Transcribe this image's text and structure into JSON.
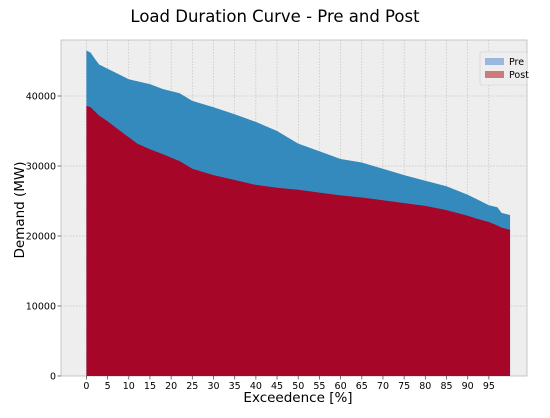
{
  "chart_data": {
    "type": "area",
    "title": "Load Duration Curve - Pre and Post",
    "xlabel": "Exceedence [%]",
    "ylabel": "Demand (MW)",
    "xlim": [
      -6,
      104
    ],
    "ylim": [
      0,
      48000
    ],
    "x_ticks": [
      "0",
      "5",
      "10",
      "15",
      "20",
      "25",
      "30",
      "35",
      "40",
      "45",
      "50",
      "55",
      "60",
      "65",
      "70",
      "75",
      "80",
      "85",
      "90",
      "95"
    ],
    "y_ticks": [
      "0",
      "10000",
      "20000",
      "30000",
      "40000"
    ],
    "grid": true,
    "legend_position": "top-right",
    "x": [
      0,
      1,
      2,
      3,
      5,
      8,
      10,
      12,
      15,
      18,
      20,
      22,
      25,
      30,
      35,
      40,
      45,
      50,
      55,
      60,
      65,
      70,
      75,
      80,
      85,
      90,
      92,
      95,
      97,
      98,
      100
    ],
    "series": [
      {
        "name": "Pre",
        "color": "#348abd",
        "legend_color": "#9ab8de",
        "values": [
          46500,
          46200,
          45300,
          44500,
          43900,
          43000,
          42400,
          42100,
          41700,
          41000,
          40700,
          40400,
          39300,
          38400,
          37400,
          36300,
          35000,
          33200,
          32100,
          31000,
          30500,
          29600,
          28700,
          27900,
          27100,
          25900,
          25300,
          24400,
          24100,
          23300,
          23000
        ]
      },
      {
        "name": "Post",
        "color": "#a60628",
        "legend_color": "#cc7a7c",
        "values": [
          38600,
          38400,
          37800,
          37200,
          36400,
          35000,
          34100,
          33200,
          32400,
          31700,
          31200,
          30700,
          29600,
          28700,
          28000,
          27300,
          26900,
          26600,
          26200,
          25800,
          25500,
          25100,
          24700,
          24300,
          23700,
          22900,
          22500,
          22000,
          21500,
          21200,
          20900
        ]
      }
    ]
  }
}
